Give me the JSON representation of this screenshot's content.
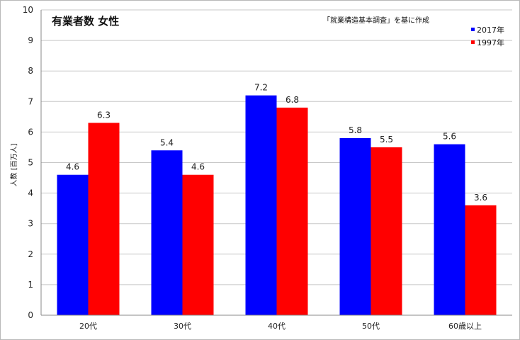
{
  "chart_data": {
    "type": "bar",
    "title": "有業者数 女性",
    "note": "「就業構造基本調査」を基に作成",
    "ylabel": "人数 [百万人]",
    "xlabel": "",
    "ylim": [
      0,
      10
    ],
    "yticks": [
      0,
      1,
      2,
      3,
      4,
      5,
      6,
      7,
      8,
      9,
      10
    ],
    "grid": true,
    "legend_position": "top-right",
    "categories": [
      "20代",
      "30代",
      "40代",
      "50代",
      "60歳以上"
    ],
    "series": [
      {
        "name": "2017年",
        "color": "#0000ff",
        "values": [
          4.6,
          5.4,
          7.2,
          5.8,
          5.6
        ]
      },
      {
        "name": "1997年",
        "color": "#ff0000",
        "values": [
          6.3,
          4.6,
          6.8,
          5.5,
          3.6
        ]
      }
    ]
  }
}
